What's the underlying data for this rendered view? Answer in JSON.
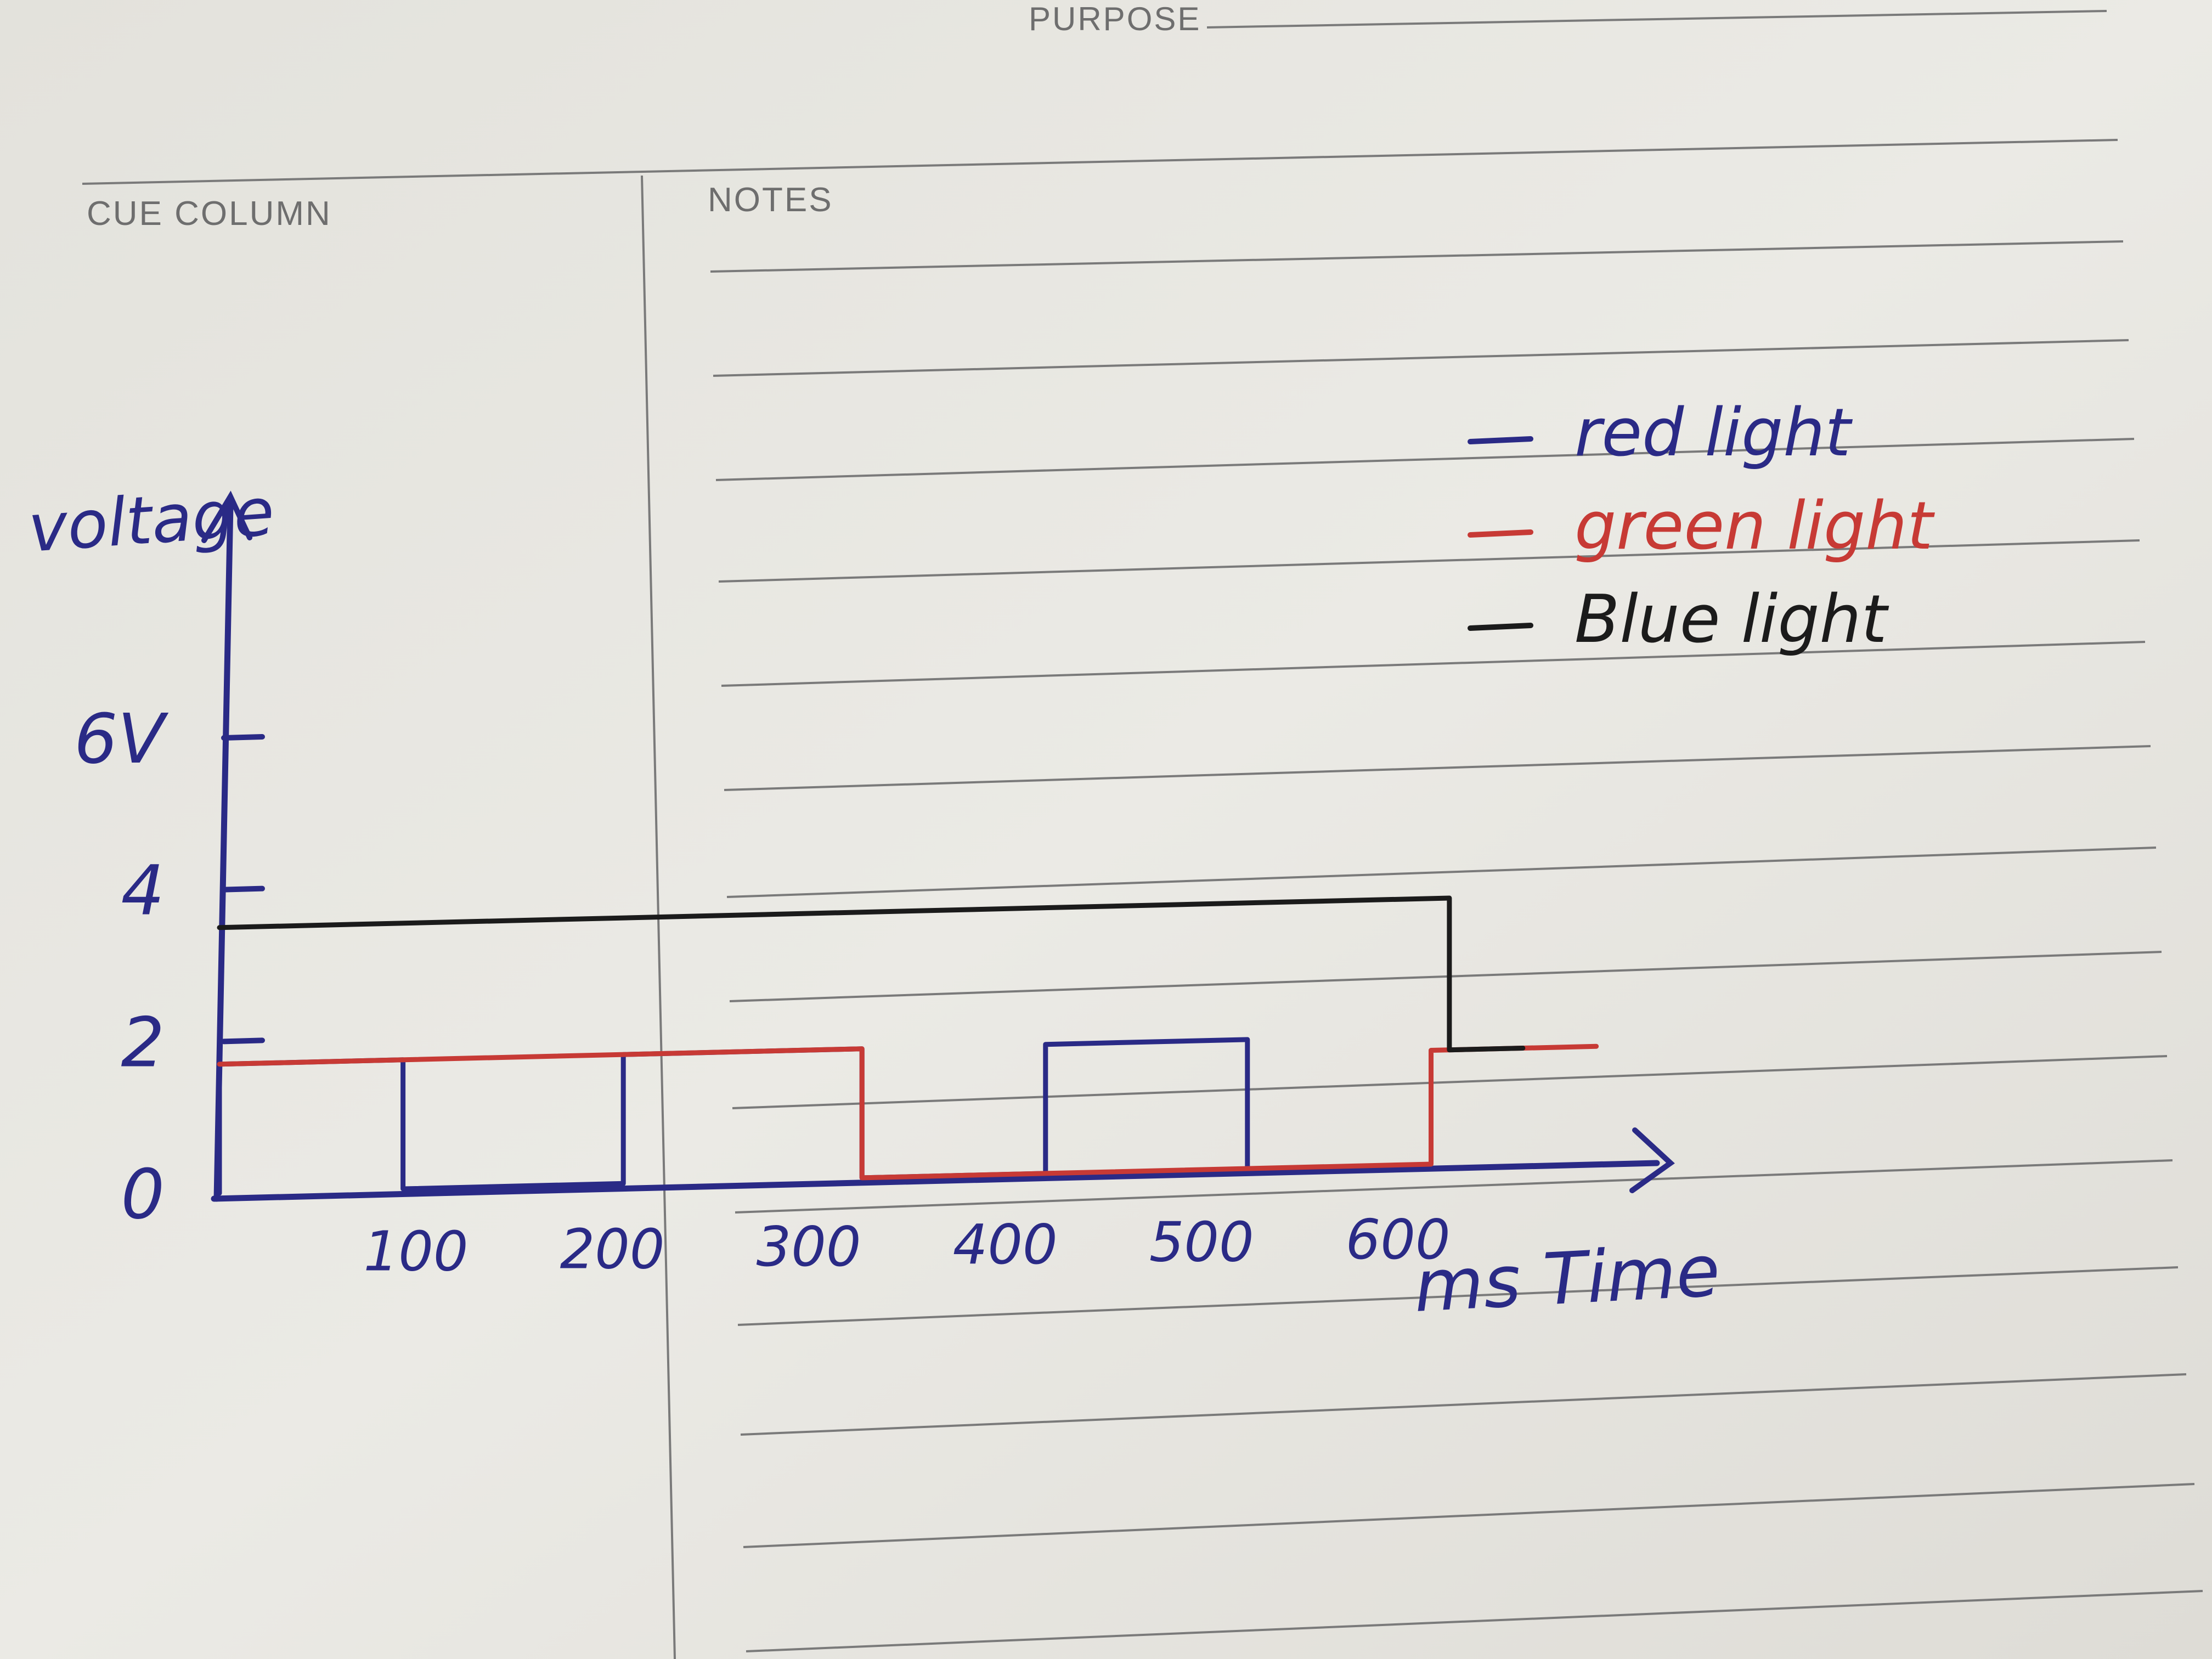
{
  "form": {
    "purpose_label": "PURPOSE",
    "cue_label": "CUE COLUMN",
    "notes_label": "NOTES"
  },
  "chart_data": {
    "type": "line",
    "ylabel": "voltage",
    "xlabel": "ms Time",
    "yticks": [
      "0",
      "2",
      "4",
      "6V"
    ],
    "ytick_values": [
      0,
      2,
      4,
      6
    ],
    "xticks": [
      "100",
      "200",
      "300",
      "400",
      "500",
      "600"
    ],
    "xtick_values": [
      100,
      200,
      300,
      400,
      500,
      600
    ],
    "xlim": [
      0,
      780
    ],
    "ylim": [
      0,
      9
    ],
    "legend": [
      "red light",
      "green light",
      "Blue light"
    ],
    "legend_position": "top-right",
    "series": [
      {
        "name": "red light",
        "color": "#2a2a86",
        "points": [
          [
            0,
            0
          ],
          [
            0,
            1.7
          ],
          [
            100,
            1.7
          ],
          [
            100,
            0
          ],
          [
            220,
            0
          ],
          [
            220,
            1.7
          ],
          [
            350,
            1.7
          ],
          [
            350,
            0
          ],
          [
            450,
            0
          ],
          [
            450,
            1.7
          ],
          [
            560,
            1.7
          ],
          [
            560,
            0
          ]
        ]
      },
      {
        "name": "green light",
        "color": "#c73a35",
        "points": [
          [
            0,
            1.7
          ],
          [
            350,
            1.7
          ],
          [
            350,
            0
          ],
          [
            660,
            0
          ],
          [
            660,
            1.5
          ],
          [
            750,
            1.5
          ]
        ]
      },
      {
        "name": "Blue light",
        "color": "#1b1b1b",
        "points": [
          [
            0,
            3.5
          ],
          [
            670,
            3.5
          ],
          [
            670,
            1.5
          ],
          [
            710,
            1.5
          ]
        ]
      }
    ]
  }
}
